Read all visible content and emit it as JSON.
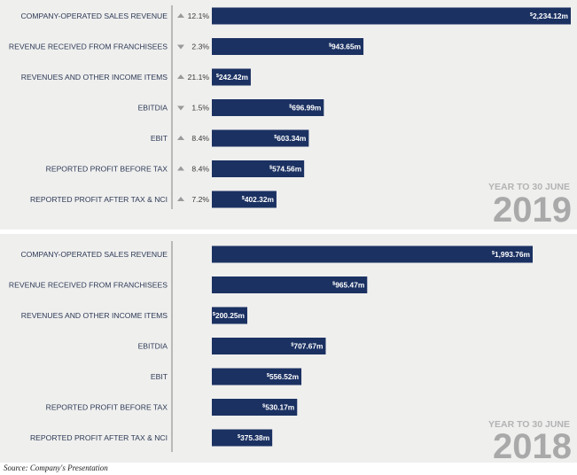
{
  "colors": {
    "bar": "#1b3162",
    "axis": "#9c9c9c",
    "panel_bg": "#efefee",
    "year_text": "#a9a9a9"
  },
  "chart_data": [
    {
      "type": "bar",
      "orientation": "horizontal",
      "year_caption": "YEAR TO 30 JUNE",
      "year": "2019",
      "categories": [
        "COMPANY-OPERATED SALES REVENUE",
        "REVENUE RECEIVED FROM FRANCHISEES",
        "REVENUES AND OTHER INCOME ITEMS",
        "EBITDIA",
        "EBIT",
        "REPORTED PROFIT BEFORE TAX",
        "REPORTED PROFIT AFTER TAX & NCI"
      ],
      "values": [
        2234.12,
        943.65,
        242.42,
        696.99,
        603.34,
        574.56,
        402.32
      ],
      "value_labels": [
        "$2,234.12m",
        "$943.65m",
        "$242.42m",
        "$696.99m",
        "$603.34m",
        "$574.56m",
        "$402.32m"
      ],
      "changes": [
        {
          "direction": "up",
          "text": "12.1%"
        },
        {
          "direction": "down",
          "text": "2.3%"
        },
        {
          "direction": "up",
          "text": "21.1%"
        },
        {
          "direction": "down",
          "text": "1.5%"
        },
        {
          "direction": "up",
          "text": "8.4%"
        },
        {
          "direction": "up",
          "text": "8.4%"
        },
        {
          "direction": "up",
          "text": "7.2%"
        }
      ],
      "xlim": [
        0,
        2234.12
      ]
    },
    {
      "type": "bar",
      "orientation": "horizontal",
      "year_caption": "YEAR TO 30 JUNE",
      "year": "2018",
      "categories": [
        "COMPANY-OPERATED SALES REVENUE",
        "REVENUE RECEIVED FROM FRANCHISEES",
        "REVENUES AND OTHER INCOME ITEMS",
        "EBITDIA",
        "EBIT",
        "REPORTED PROFIT BEFORE TAX",
        "REPORTED PROFIT AFTER TAX & NCI"
      ],
      "values": [
        1993.76,
        965.47,
        200.25,
        707.67,
        556.52,
        530.17,
        375.38
      ],
      "value_labels": [
        "$1,993.76m",
        "$965.47m",
        "$200.25m",
        "$707.67m",
        "$556.52m",
        "$530.17m",
        "$375.38m"
      ],
      "changes": [],
      "xlim": [
        0,
        1993.76
      ]
    }
  ],
  "source": "Source: Company's Presentation"
}
